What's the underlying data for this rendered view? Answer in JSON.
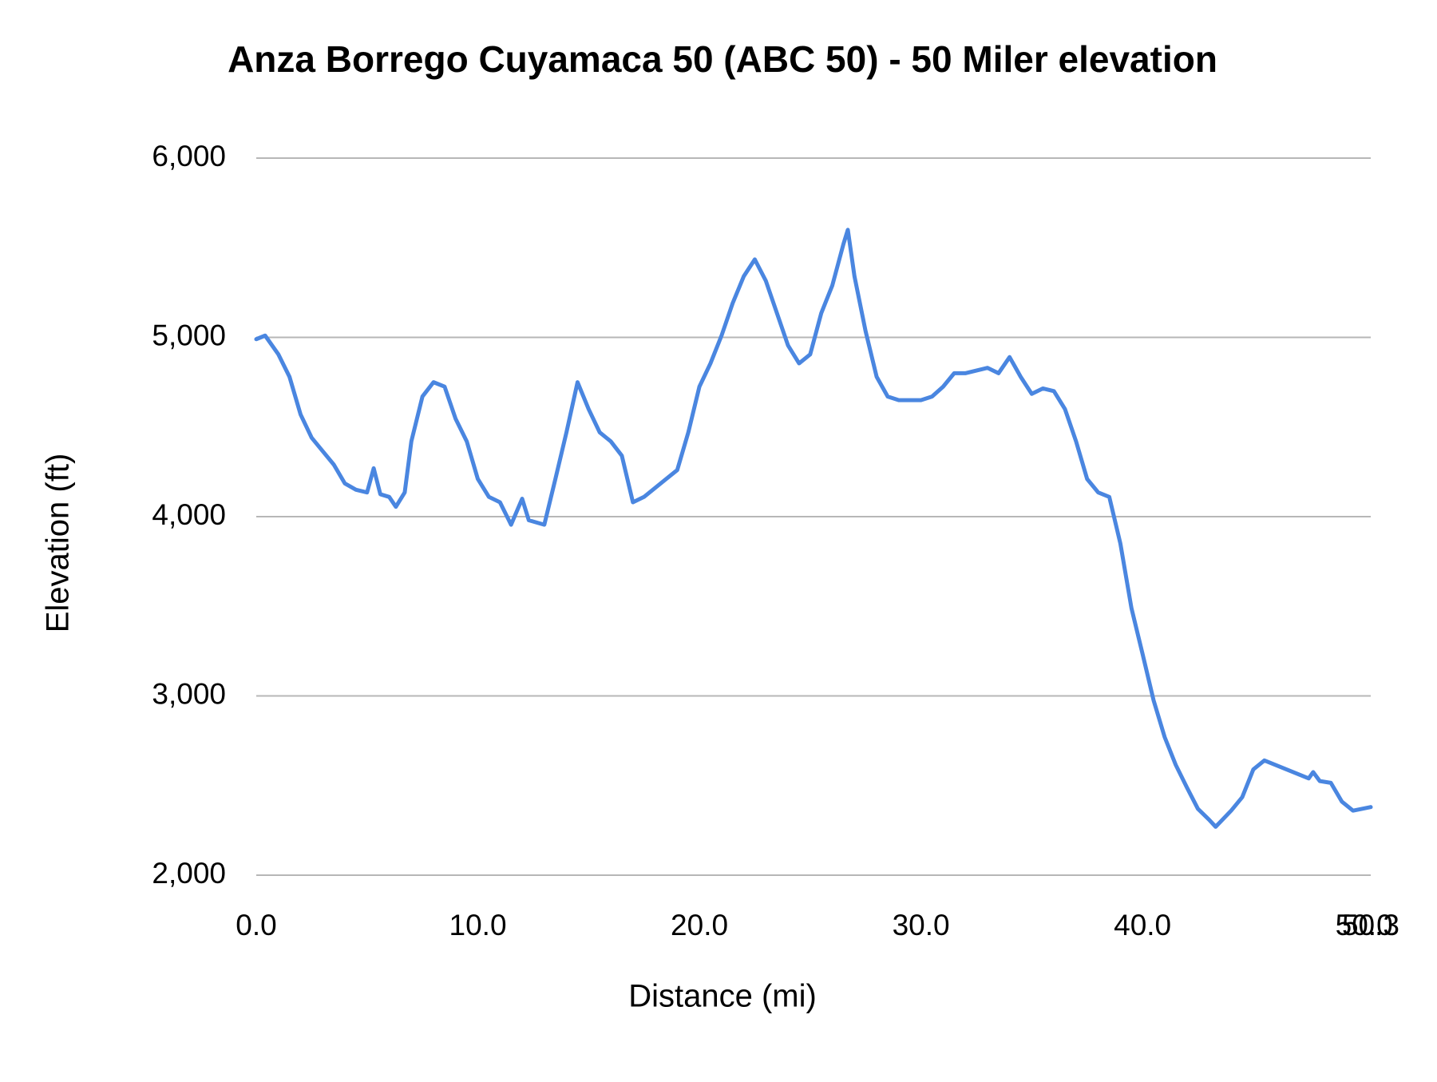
{
  "chart_data": {
    "type": "line",
    "title": "Anza Borrego Cuyamaca 50 (ABC 50) - 50 Miler elevation",
    "x_label": "Distance (mi)",
    "y_label": "Elevation (ft)",
    "xlim": [
      0,
      50.3
    ],
    "ylim": [
      2000,
      6000
    ],
    "xticks": [
      {
        "value": 0,
        "label": "0.0"
      },
      {
        "value": 10,
        "label": "10.0"
      },
      {
        "value": 20,
        "label": "20.0"
      },
      {
        "value": 30,
        "label": "30.0"
      },
      {
        "value": 40,
        "label": "40.0"
      },
      {
        "value": 50,
        "label": "50.0"
      },
      {
        "value": 50.3,
        "label": "50.3"
      }
    ],
    "yticks": [
      {
        "value": 2000,
        "label": "2,000"
      },
      {
        "value": 3000,
        "label": "3,000"
      },
      {
        "value": 4000,
        "label": "4,000"
      },
      {
        "value": 5000,
        "label": "5,000"
      },
      {
        "value": 6000,
        "label": "6,000"
      }
    ],
    "grid": true,
    "x": [
      0,
      0.4,
      1,
      1.5,
      2,
      2.5,
      3,
      3.5,
      4,
      4.5,
      5,
      5.3,
      5.6,
      6,
      6.3,
      6.7,
      7,
      7.5,
      8,
      8.5,
      9,
      9.5,
      10,
      10.5,
      11,
      11.5,
      12,
      12.3,
      13,
      13.5,
      14,
      14.5,
      15,
      15.5,
      16,
      16.5,
      17,
      17.5,
      18,
      18.5,
      19,
      19.5,
      20,
      20.5,
      21,
      21.5,
      22,
      22.5,
      23,
      23.5,
      24,
      24.5,
      25,
      25.5,
      26,
      26.5,
      26.7,
      27,
      27.5,
      28,
      28.5,
      29,
      29.5,
      30,
      30.5,
      31,
      31.5,
      32,
      33,
      33.5,
      34,
      34.5,
      35,
      35.5,
      36,
      36.5,
      37,
      37.5,
      38,
      38.5,
      39,
      39.5,
      40,
      40.5,
      41,
      41.5,
      42,
      42.5,
      43,
      43.3,
      44,
      44.5,
      45,
      45.5,
      46,
      46.5,
      47,
      47.5,
      47.7,
      48,
      48.5,
      49,
      49.5,
      50.3
    ],
    "series": [
      {
        "name": "Elevation",
        "color": "#4a86e0",
        "values": [
          4990,
          5010,
          4905,
          4780,
          4570,
          4440,
          4365,
          4290,
          4185,
          4150,
          4135,
          4270,
          4125,
          4110,
          4055,
          4135,
          4420,
          4670,
          4750,
          4725,
          4545,
          4420,
          4210,
          4110,
          4080,
          3955,
          4100,
          3980,
          3955,
          4210,
          4470,
          4750,
          4600,
          4470,
          4420,
          4340,
          4080,
          4110,
          4160,
          4210,
          4260,
          4470,
          4725,
          4855,
          5010,
          5190,
          5340,
          5435,
          5315,
          5135,
          4955,
          4855,
          4905,
          5135,
          5290,
          5520,
          5600,
          5340,
          5035,
          4780,
          4670,
          4650,
          4650,
          4650,
          4670,
          4725,
          4800,
          4800,
          4830,
          4800,
          4890,
          4780,
          4685,
          4715,
          4700,
          4600,
          4420,
          4210,
          4135,
          4110,
          3850,
          3490,
          3235,
          2975,
          2770,
          2615,
          2490,
          2370,
          2310,
          2270,
          2360,
          2435,
          2590,
          2640,
          2615,
          2590,
          2565,
          2540,
          2575,
          2525,
          2515,
          2410,
          2360,
          2380
        ]
      }
    ]
  }
}
